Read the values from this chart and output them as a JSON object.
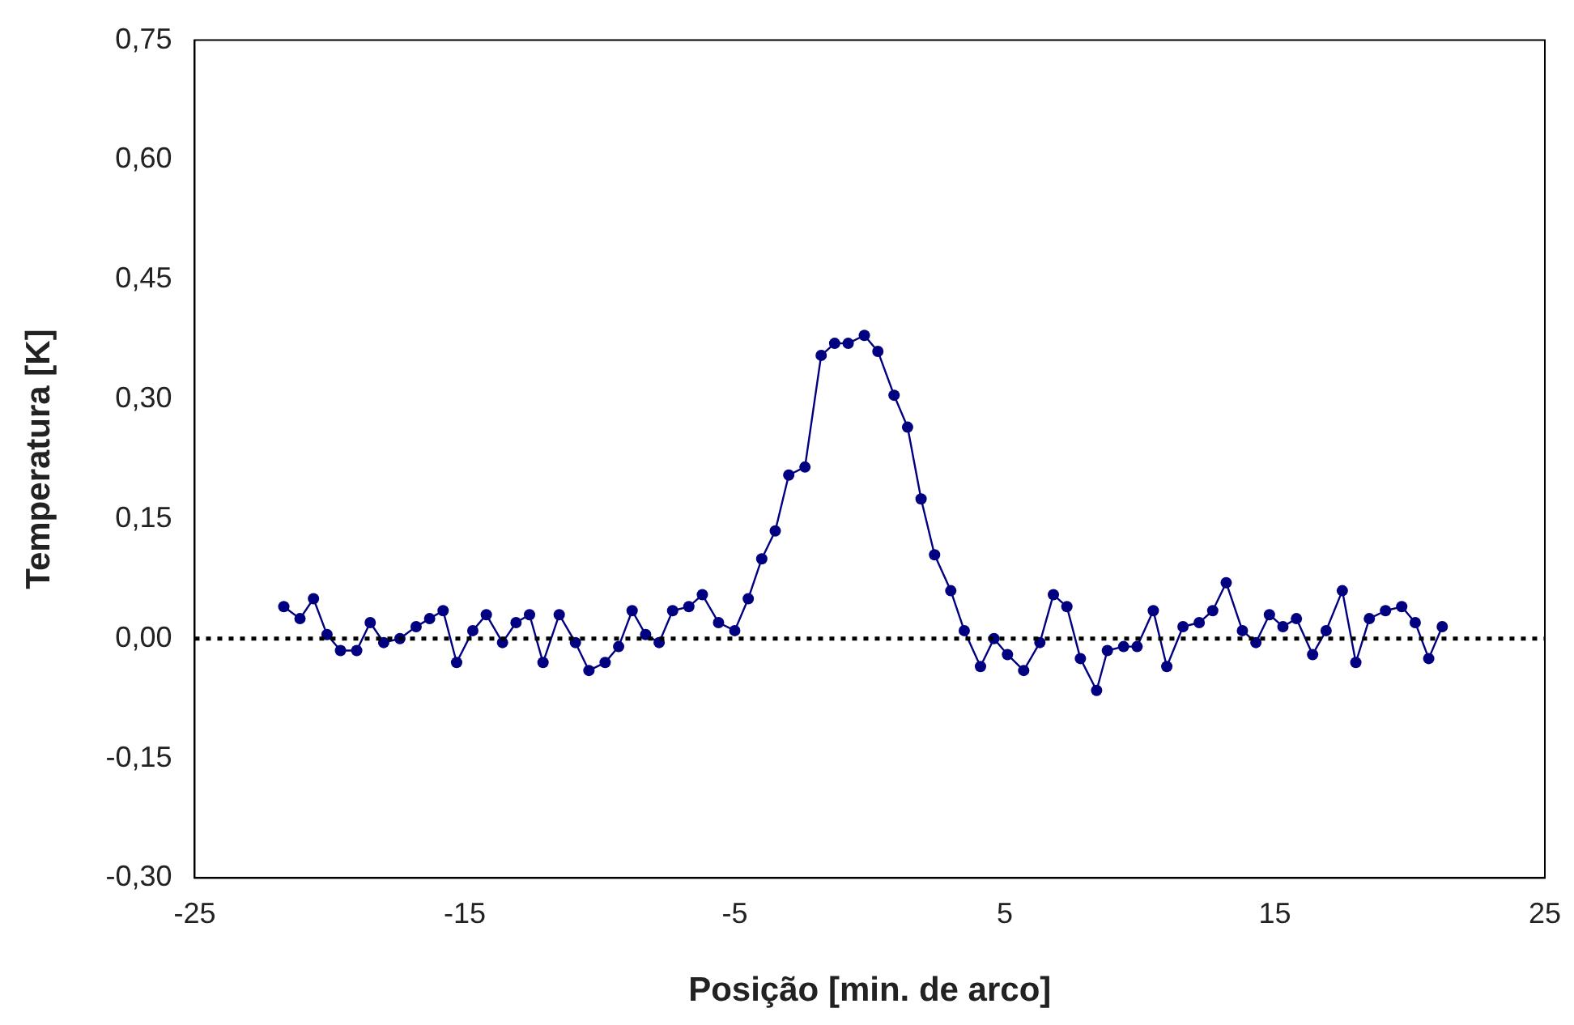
{
  "chart_data": {
    "type": "line",
    "xlabel": "Posição [min. de arco]",
    "ylabel": "Temperatura [K]",
    "x": [
      -21.7,
      -21.1,
      -20.6,
      -20.1,
      -19.6,
      -19.0,
      -18.5,
      -18.0,
      -17.4,
      -16.8,
      -16.3,
      -15.8,
      -15.3,
      -14.7,
      -14.2,
      -13.6,
      -13.1,
      -12.6,
      -12.1,
      -11.5,
      -10.9,
      -10.4,
      -9.8,
      -9.3,
      -8.8,
      -8.3,
      -7.8,
      -7.3,
      -6.7,
      -6.2,
      -5.6,
      -5.0,
      -4.5,
      -4.0,
      -3.5,
      -3.0,
      -2.4,
      -1.8,
      -1.3,
      -0.8,
      -0.2,
      0.3,
      0.9,
      1.4,
      1.9,
      2.4,
      3.0,
      3.5,
      4.1,
      4.6,
      5.1,
      5.7,
      6.3,
      6.8,
      7.3,
      7.8,
      8.4,
      8.8,
      9.4,
      9.9,
      10.5,
      11.0,
      11.6,
      12.2,
      12.7,
      13.2,
      13.8,
      14.3,
      14.8,
      15.3,
      15.8,
      16.4,
      16.9,
      17.5,
      18.0,
      18.5,
      19.1,
      19.7,
      20.2,
      20.7,
      21.2
    ],
    "series": [
      {
        "color": "#000080",
        "values": [
          0.04,
          0.025,
          0.05,
          0.005,
          -0.015,
          -0.015,
          0.02,
          -0.005,
          0,
          0.015,
          0.025,
          0.035,
          -0.03,
          0.01,
          0.03,
          -0.005,
          0.02,
          0.03,
          -0.03,
          0.03,
          -0.005,
          -0.04,
          -0.03,
          -0.01,
          0.035,
          0.005,
          -0.005,
          0.035,
          0.04,
          0.055,
          0.02,
          0.01,
          0.05,
          0.1,
          0.135,
          0.205,
          0.215,
          0.355,
          0.37,
          0.37,
          0.38,
          0.36,
          0.305,
          0.265,
          0.175,
          0.105,
          0.06,
          0.01,
          -0.035,
          0,
          -0.02,
          -0.04,
          -0.005,
          0.055,
          0.04,
          -0.025,
          -0.065,
          -0.015,
          -0.01,
          -0.01,
          0.035,
          -0.035,
          0.015,
          0.02,
          0.035,
          0.07,
          0.01,
          -0.005,
          0.03,
          0.015,
          0.025,
          -0.02,
          0.01,
          0.06,
          -0.03,
          0.025,
          0.035,
          0.04,
          0.02,
          -0.025,
          0.015
        ]
      }
    ],
    "xlim": [
      -25,
      25
    ],
    "xticks": [
      -25,
      -15,
      -5,
      5,
      15,
      25
    ],
    "ylim": [
      -0.3,
      0.75
    ],
    "yticks": [
      {
        "value": -0.3,
        "label": "-0,30"
      },
      {
        "value": -0.15,
        "label": "-0,15"
      },
      {
        "value": 0,
        "label": "0,00"
      },
      {
        "value": 0.15,
        "label": "0,15"
      },
      {
        "value": 0.3,
        "label": "0,30"
      },
      {
        "value": 0.45,
        "label": "0,45"
      },
      {
        "value": 0.6,
        "label": "0,60"
      },
      {
        "value": 0.75,
        "label": "0,75"
      }
    ],
    "ref_lines": [
      {
        "axis": "y",
        "value": 0,
        "color": "#000000",
        "line_style": "dotted"
      }
    ],
    "marker": "circle",
    "grid": false,
    "legend": false
  }
}
